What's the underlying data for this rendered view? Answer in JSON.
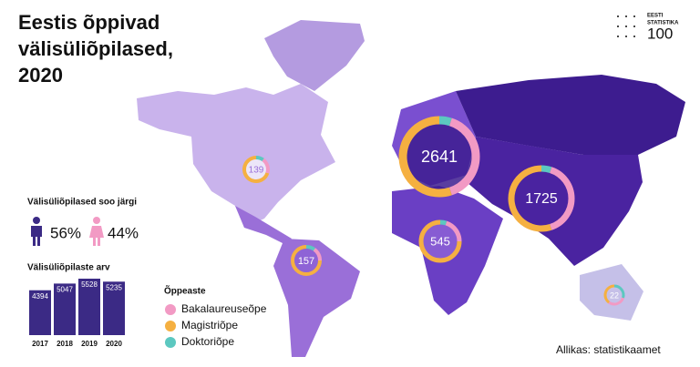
{
  "header": {
    "title_lines": [
      "Eestis õppivad",
      "välisüliõpilased,",
      "2020"
    ]
  },
  "logo": {
    "lines": [
      "EESTI",
      "STATISTIKA",
      "100"
    ]
  },
  "gender": {
    "title": "Välisüliõpilased soo järgi",
    "values": [
      56,
      44
    ],
    "value_labels": [
      "56%",
      "44%"
    ]
  },
  "chart_data": {
    "type": "bar",
    "title": "Välisüliõpilaste arv",
    "categories": [
      "2017",
      "2018",
      "2019",
      "2020"
    ],
    "values": [
      4394,
      5047,
      5528,
      5235
    ],
    "color": "#3b2a85"
  },
  "legend": {
    "title": "Õppeaste",
    "items": [
      {
        "name": "Bakalaureuseõpe",
        "color": "#f29ac4"
      },
      {
        "name": "Magistriõpe",
        "color": "#f5b041"
      },
      {
        "name": "Doktoriõpe",
        "color": "#5cc8c0"
      }
    ]
  },
  "regions": [
    {
      "total": 2641,
      "shares": [
        40,
        55,
        5
      ]
    },
    {
      "total": 1725,
      "shares": [
        40,
        55,
        5
      ]
    },
    {
      "total": 545,
      "shares": [
        20,
        75,
        5
      ]
    },
    {
      "total": 139,
      "shares": [
        20,
        70,
        10
      ]
    },
    {
      "total": 157,
      "shares": [
        15,
        75,
        10
      ]
    },
    {
      "total": 22,
      "shares": [
        30,
        40,
        30
      ]
    }
  ],
  "source": "Allikas: statistikaamet"
}
